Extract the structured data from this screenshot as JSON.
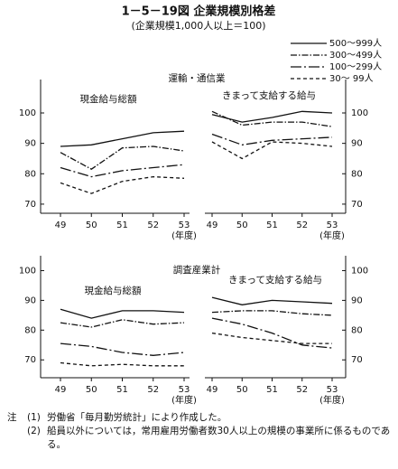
{
  "header": {
    "title": "1－5－19図 企業規模別格差",
    "subtitle": "(企業規模1,000人以上＝100)"
  },
  "legend": [
    {
      "name": "500～999人",
      "line_style": "solid"
    },
    {
      "name": "300～499人",
      "line_style": "dash-dot"
    },
    {
      "name": "100～299人",
      "line_style": "long-dash-dot"
    },
    {
      "name": "30～ 99人",
      "line_style": "dashed"
    }
  ],
  "color": "#111111",
  "sections": [
    "運輸・通信業",
    "調査産業計"
  ],
  "chart_data": [
    {
      "type": "line",
      "title": "現金給与総額",
      "categories": [
        "49",
        "50",
        "51",
        "52",
        "53"
      ],
      "x_label": "(年度)",
      "y_axis_side": "left",
      "ylim": [
        67,
        111
      ],
      "yticks": [
        70,
        80,
        90,
        100
      ],
      "series": [
        {
          "values": [
            89,
            89.5,
            91.5,
            93.5,
            94
          ]
        },
        {
          "values": [
            87,
            81.5,
            88.5,
            89,
            87.5
          ]
        },
        {
          "values": [
            82,
            79,
            81,
            82,
            83
          ]
        },
        {
          "values": [
            77,
            73.5,
            77.5,
            79,
            78.5
          ]
        }
      ]
    },
    {
      "type": "line",
      "title": "きまって支給する給与",
      "categories": [
        "49",
        "50",
        "51",
        "52",
        "53"
      ],
      "x_label": "(年度)",
      "y_axis_side": "right",
      "ylim": [
        67,
        111
      ],
      "yticks": [
        70,
        80,
        90,
        100
      ],
      "series": [
        {
          "values": [
            99.5,
            97,
            98.5,
            100.5,
            100
          ]
        },
        {
          "values": [
            100.5,
            96,
            97,
            97,
            95.5
          ]
        },
        {
          "values": [
            93,
            89.5,
            91,
            91.5,
            92
          ]
        },
        {
          "values": [
            90.5,
            85,
            90.5,
            90,
            89
          ]
        }
      ]
    },
    {
      "type": "line",
      "title": "現金給与総額",
      "categories": [
        "49",
        "50",
        "51",
        "52",
        "53"
      ],
      "x_label": "(年度)",
      "y_axis_side": "left",
      "ylim": [
        64,
        105
      ],
      "yticks": [
        70,
        80,
        90,
        100
      ],
      "series": [
        {
          "values": [
            87,
            84,
            86.5,
            86.5,
            86
          ]
        },
        {
          "values": [
            82.5,
            81,
            83.5,
            82,
            82.5
          ]
        },
        {
          "values": [
            75.5,
            74.5,
            72.5,
            71.5,
            72.5
          ]
        },
        {
          "values": [
            69,
            68,
            68.5,
            68,
            68
          ]
        }
      ]
    },
    {
      "type": "line",
      "title": "きまって支給する給与",
      "categories": [
        "49",
        "50",
        "51",
        "52",
        "53"
      ],
      "x_label": "(年度)",
      "y_axis_side": "right",
      "ylim": [
        64,
        105
      ],
      "yticks": [
        70,
        80,
        90,
        100
      ],
      "series": [
        {
          "values": [
            91,
            88.5,
            90,
            89.5,
            89
          ]
        },
        {
          "values": [
            86,
            86.5,
            86.5,
            85.5,
            85
          ]
        },
        {
          "values": [
            84,
            82,
            79,
            75,
            74
          ]
        },
        {
          "values": [
            79,
            77.5,
            76.5,
            75.5,
            75.5
          ]
        }
      ]
    }
  ],
  "notes_label": "注",
  "notes": [
    {
      "marker": "(1)",
      "text": "労働省「毎月勤労統計」により作成した。"
    },
    {
      "marker": "(2)",
      "text": "船員以外については，常用雇用労働者数30人以上の規模の事業所に係るものである。"
    }
  ]
}
